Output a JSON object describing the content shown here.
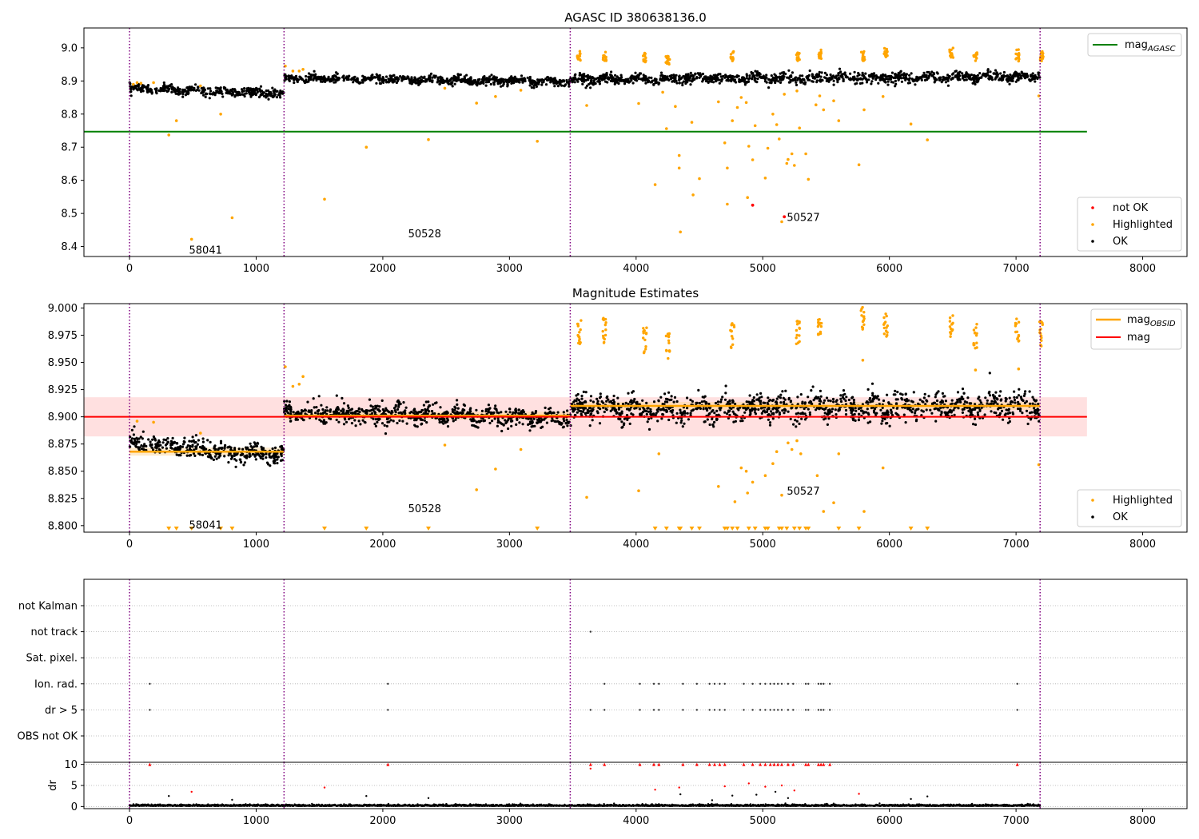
{
  "chart_data": [
    {
      "type": "scatter",
      "title": "AGASC ID 380638136.0",
      "xlim": [
        -360,
        8350
      ],
      "ylim": [
        8.37,
        9.06
      ],
      "xticks": [
        0,
        1000,
        2000,
        3000,
        4000,
        5000,
        6000,
        7000,
        8000
      ],
      "yticks": [
        8.4,
        8.5,
        8.6,
        8.7,
        8.8,
        8.9,
        9.0
      ],
      "ytick_labels": [
        "8.4",
        "8.5",
        "8.6",
        "8.7",
        "8.8",
        "8.9",
        "9.0"
      ],
      "obs_boundaries": [
        0,
        1220,
        3480,
        7190
      ],
      "obs_labels": [
        {
          "text": "58041",
          "x": 470,
          "y": 8.39
        },
        {
          "text": "50528",
          "x": 2200,
          "y": 8.44
        },
        {
          "text": "50527",
          "x": 5190,
          "y": 8.49
        }
      ],
      "reference_line": {
        "name": "mag$_{AGASC}$",
        "label_main": "mag",
        "label_sub": "AGASC",
        "y": 8.747,
        "x": [
          -360,
          7560
        ],
        "color": "#008000"
      },
      "segments": [
        {
          "x": [
            0,
            1220
          ],
          "y_start": 8.877,
          "y_end": 8.862,
          "spread": 0.012
        },
        {
          "x": [
            1220,
            3480
          ],
          "y_start": 8.908,
          "y_end": 8.898,
          "spread": 0.011
        },
        {
          "x": [
            3480,
            7190
          ],
          "y_start": 8.905,
          "y_end": 8.912,
          "spread": 0.014
        }
      ],
      "highlighted_points": [
        {
          "x": 30,
          "y": 8.89
        },
        {
          "x": 60,
          "y": 8.895
        },
        {
          "x": 90,
          "y": 8.893
        },
        {
          "x": 190,
          "y": 8.895
        },
        {
          "x": 310,
          "y": 8.737
        },
        {
          "x": 370,
          "y": 8.78
        },
        {
          "x": 490,
          "y": 8.422
        },
        {
          "x": 560,
          "y": 8.885
        },
        {
          "x": 720,
          "y": 8.8
        },
        {
          "x": 810,
          "y": 8.487
        },
        {
          "x": 1230,
          "y": 8.945
        },
        {
          "x": 1290,
          "y": 8.93
        },
        {
          "x": 1340,
          "y": 8.93
        },
        {
          "x": 1370,
          "y": 8.935
        },
        {
          "x": 1540,
          "y": 8.543
        },
        {
          "x": 1870,
          "y": 8.7
        },
        {
          "x": 2360,
          "y": 8.723
        },
        {
          "x": 2490,
          "y": 8.878
        },
        {
          "x": 2740,
          "y": 8.833
        },
        {
          "x": 2890,
          "y": 8.853
        },
        {
          "x": 3090,
          "y": 8.872
        },
        {
          "x": 3220,
          "y": 8.718
        },
        {
          "x": 3610,
          "y": 8.826
        },
        {
          "x": 4020,
          "y": 8.832
        },
        {
          "x": 4150,
          "y": 8.587
        },
        {
          "x": 4210,
          "y": 8.866
        },
        {
          "x": 4240,
          "y": 8.756
        },
        {
          "x": 4310,
          "y": 8.823
        },
        {
          "x": 4340,
          "y": 8.675
        },
        {
          "x": 4340,
          "y": 8.637
        },
        {
          "x": 4350,
          "y": 8.444
        },
        {
          "x": 4440,
          "y": 8.775
        },
        {
          "x": 4450,
          "y": 8.556
        },
        {
          "x": 4500,
          "y": 8.605
        },
        {
          "x": 4650,
          "y": 8.837
        },
        {
          "x": 4700,
          "y": 8.713
        },
        {
          "x": 4720,
          "y": 8.637
        },
        {
          "x": 4720,
          "y": 8.528
        },
        {
          "x": 4760,
          "y": 8.78
        },
        {
          "x": 4800,
          "y": 8.82
        },
        {
          "x": 4830,
          "y": 8.85
        },
        {
          "x": 4870,
          "y": 8.835
        },
        {
          "x": 4890,
          "y": 8.703
        },
        {
          "x": 4920,
          "y": 8.662
        },
        {
          "x": 4940,
          "y": 8.765
        },
        {
          "x": 4880,
          "y": 8.548
        },
        {
          "x": 5020,
          "y": 8.607
        },
        {
          "x": 5040,
          "y": 8.697
        },
        {
          "x": 5080,
          "y": 8.8
        },
        {
          "x": 5110,
          "y": 8.768
        },
        {
          "x": 5130,
          "y": 8.725
        },
        {
          "x": 5150,
          "y": 8.475
        },
        {
          "x": 5170,
          "y": 8.86
        },
        {
          "x": 5190,
          "y": 8.651
        },
        {
          "x": 5200,
          "y": 8.663
        },
        {
          "x": 5230,
          "y": 8.68
        },
        {
          "x": 5250,
          "y": 8.645
        },
        {
          "x": 5270,
          "y": 8.87
        },
        {
          "x": 5290,
          "y": 8.758
        },
        {
          "x": 5340,
          "y": 8.68
        },
        {
          "x": 5360,
          "y": 8.603
        },
        {
          "x": 5420,
          "y": 8.828
        },
        {
          "x": 5450,
          "y": 8.855
        },
        {
          "x": 5480,
          "y": 8.813
        },
        {
          "x": 5560,
          "y": 8.84
        },
        {
          "x": 5600,
          "y": 8.78
        },
        {
          "x": 5760,
          "y": 8.647
        },
        {
          "x": 5800,
          "y": 8.813
        },
        {
          "x": 5950,
          "y": 8.853
        },
        {
          "x": 6170,
          "y": 8.77
        },
        {
          "x": 6300,
          "y": 8.722
        },
        {
          "x": 7020,
          "y": 8.96
        },
        {
          "x": 7180,
          "y": 8.855
        }
      ],
      "highlighted_clusters": [
        {
          "x": 3550,
          "y": 8.975
        },
        {
          "x": 3750,
          "y": 8.975
        },
        {
          "x": 4070,
          "y": 8.97
        },
        {
          "x": 4250,
          "y": 8.965
        },
        {
          "x": 4760,
          "y": 8.975
        },
        {
          "x": 5280,
          "y": 8.975
        },
        {
          "x": 5450,
          "y": 8.98
        },
        {
          "x": 5790,
          "y": 8.975
        },
        {
          "x": 5970,
          "y": 8.985
        },
        {
          "x": 6490,
          "y": 8.985
        },
        {
          "x": 6680,
          "y": 8.975
        },
        {
          "x": 7010,
          "y": 8.98
        },
        {
          "x": 7200,
          "y": 8.975
        }
      ],
      "not_ok_points": [
        {
          "x": 4920,
          "y": 8.525
        },
        {
          "x": 5170,
          "y": 8.49
        }
      ],
      "legend": {
        "placement": "upper-right / lower-right",
        "entries": [
          "not OK",
          "Highlighted",
          "OK"
        ]
      }
    },
    {
      "type": "scatter",
      "title": "Magnitude Estimates",
      "xlim": [
        -360,
        8350
      ],
      "ylim": [
        8.794,
        9.004
      ],
      "xticks": [
        0,
        1000,
        2000,
        3000,
        4000,
        5000,
        6000,
        7000,
        8000
      ],
      "yticks": [
        8.8,
        8.825,
        8.85,
        8.875,
        8.9,
        8.925,
        8.95,
        8.975,
        9.0
      ],
      "ytick_labels": [
        "8.800",
        "8.825",
        "8.850",
        "8.875",
        "8.900",
        "8.925",
        "8.950",
        "8.975",
        "9.000"
      ],
      "obs_boundaries": [
        0,
        1220,
        3480,
        7190
      ],
      "obs_labels": [
        {
          "text": "58041",
          "x": 470,
          "y": 8.801
        },
        {
          "text": "50528",
          "x": 2200,
          "y": 8.816
        },
        {
          "text": "50527",
          "x": 5190,
          "y": 8.832
        }
      ],
      "mag": {
        "name": "mag",
        "y": 8.9,
        "band": [
          8.882,
          8.918
        ],
        "x": [
          -360,
          7560
        ],
        "color": "#ff0000"
      },
      "mag_obsid": {
        "label_main": "mag",
        "label_sub": "OBSID",
        "color": "#ffa500",
        "segments": [
          {
            "x": [
              0,
              1220
            ],
            "y": 8.868
          },
          {
            "x": [
              1220,
              3480
            ],
            "y": 8.901
          },
          {
            "x": [
              3480,
              7190
            ],
            "y": 8.91
          }
        ]
      },
      "segments": [
        {
          "x": [
            0,
            1220
          ],
          "y_start": 8.876,
          "y_end": 8.864,
          "spread": 0.008
        },
        {
          "x": [
            1220,
            3480
          ],
          "y_start": 8.904,
          "y_end": 8.899,
          "spread": 0.008
        },
        {
          "x": [
            3480,
            7190
          ],
          "y_start": 8.906,
          "y_end": 8.911,
          "spread": 0.011
        }
      ],
      "highlighted_points": [
        {
          "x": 1230,
          "y": 8.946
        },
        {
          "x": 1290,
          "y": 8.928
        },
        {
          "x": 1340,
          "y": 8.93
        },
        {
          "x": 1370,
          "y": 8.937
        },
        {
          "x": 60,
          "y": 8.896
        },
        {
          "x": 190,
          "y": 8.895
        },
        {
          "x": 560,
          "y": 8.885
        },
        {
          "x": 2490,
          "y": 8.874
        },
        {
          "x": 2740,
          "y": 8.833
        },
        {
          "x": 2890,
          "y": 8.852
        },
        {
          "x": 3090,
          "y": 8.87
        },
        {
          "x": 3610,
          "y": 8.826
        },
        {
          "x": 4020,
          "y": 8.832
        },
        {
          "x": 4180,
          "y": 8.866
        },
        {
          "x": 4650,
          "y": 8.836
        },
        {
          "x": 4780,
          "y": 8.822
        },
        {
          "x": 4830,
          "y": 8.853
        },
        {
          "x": 4870,
          "y": 8.85
        },
        {
          "x": 4920,
          "y": 8.84
        },
        {
          "x": 4880,
          "y": 8.83
        },
        {
          "x": 5020,
          "y": 8.846
        },
        {
          "x": 5080,
          "y": 8.857
        },
        {
          "x": 5110,
          "y": 8.868
        },
        {
          "x": 5150,
          "y": 8.828
        },
        {
          "x": 5200,
          "y": 8.876
        },
        {
          "x": 5230,
          "y": 8.87
        },
        {
          "x": 5270,
          "y": 8.878
        },
        {
          "x": 5300,
          "y": 8.866
        },
        {
          "x": 5430,
          "y": 8.846
        },
        {
          "x": 5480,
          "y": 8.813
        },
        {
          "x": 5560,
          "y": 8.821
        },
        {
          "x": 5600,
          "y": 8.866
        },
        {
          "x": 5800,
          "y": 8.813
        },
        {
          "x": 5950,
          "y": 8.853
        },
        {
          "x": 6680,
          "y": 8.943
        },
        {
          "x": 7020,
          "y": 8.944
        },
        {
          "x": 7180,
          "y": 8.856
        },
        {
          "x": 5790,
          "y": 8.952
        }
      ],
      "highlighted_clusters": [
        {
          "x": 3550,
          "y": 8.978
        },
        {
          "x": 3750,
          "y": 8.98
        },
        {
          "x": 4070,
          "y": 8.97
        },
        {
          "x": 4250,
          "y": 8.965
        },
        {
          "x": 4760,
          "y": 8.975
        },
        {
          "x": 5280,
          "y": 8.976
        },
        {
          "x": 5450,
          "y": 8.978
        },
        {
          "x": 5790,
          "y": 8.99
        },
        {
          "x": 5970,
          "y": 8.983
        },
        {
          "x": 6490,
          "y": 8.985
        },
        {
          "x": 6680,
          "y": 8.975
        },
        {
          "x": 7010,
          "y": 8.978
        },
        {
          "x": 7200,
          "y": 8.976
        }
      ],
      "below_range_markers_x": [
        310,
        370,
        490,
        720,
        810,
        1540,
        1870,
        2360,
        3220,
        4150,
        4240,
        4340,
        4350,
        4440,
        4500,
        4700,
        4720,
        4760,
        4800,
        4890,
        4940,
        5020,
        5040,
        5130,
        5150,
        5190,
        5250,
        5290,
        5340,
        5360,
        5600,
        5760,
        6170,
        6300
      ],
      "legend": {
        "upper_right_entries": [
          "mag$_{OBSID}$",
          "mag"
        ],
        "lower_right_entries": [
          "Highlighted",
          "OK"
        ]
      }
    },
    {
      "type": "scatter",
      "title": "",
      "xlim": [
        -360,
        8350
      ],
      "obs_boundaries": [
        0,
        1220,
        3480,
        7190
      ],
      "flag_rows": [
        "not Kalman",
        "not track",
        "Sat. pixel.",
        "Ion. rad.",
        "dr > 5",
        "OBS not OK"
      ],
      "flags": {
        "not track": [
          3640
        ],
        "Ion. rad.": [
          160,
          2040,
          3750,
          4030,
          4140,
          4180,
          4370,
          4480,
          4580,
          4620,
          4660,
          4700,
          4850,
          4920,
          4980,
          5020,
          5060,
          5090,
          5120,
          5150,
          5200,
          5240,
          5340,
          5360,
          5440,
          5460,
          5480,
          5530,
          7010
        ],
        "dr > 5": [
          160,
          2040,
          3640,
          3750,
          4030,
          4140,
          4180,
          4370,
          4480,
          4580,
          4620,
          4660,
          4700,
          4850,
          4920,
          4980,
          5020,
          5060,
          5090,
          5120,
          5150,
          5200,
          5240,
          5340,
          5360,
          5440,
          5460,
          5480,
          5530,
          7010
        ]
      },
      "dr_panel": {
        "ylabel": "dr",
        "ylim": [
          -0.5,
          10.5
        ],
        "yticks": [
          0,
          5,
          10
        ],
        "ytick_labels": [
          "0",
          "5",
          "10"
        ],
        "clipped_x": [
          160,
          2040,
          3640,
          3750,
          4030,
          4140,
          4180,
          4370,
          4480,
          4580,
          4620,
          4660,
          4700,
          4850,
          4920,
          4980,
          5020,
          5060,
          5090,
          5120,
          5150,
          5200,
          5240,
          5340,
          5360,
          5440,
          5460,
          5480,
          5530,
          7010
        ],
        "red_points": [
          {
            "x": 490,
            "y": 3.5
          },
          {
            "x": 1540,
            "y": 4.5
          },
          {
            "x": 4150,
            "y": 4.0
          },
          {
            "x": 4340,
            "y": 4.5
          },
          {
            "x": 4700,
            "y": 4.8
          },
          {
            "x": 4890,
            "y": 5.5
          },
          {
            "x": 5020,
            "y": 4.7
          },
          {
            "x": 5150,
            "y": 5.0
          },
          {
            "x": 5250,
            "y": 3.8
          },
          {
            "x": 5760,
            "y": 3.0
          },
          {
            "x": 3640,
            "y": 9.0
          }
        ],
        "black_points": [
          {
            "x": 310,
            "y": 2.5
          },
          {
            "x": 810,
            "y": 1.6
          },
          {
            "x": 1870,
            "y": 2.5
          },
          {
            "x": 2360,
            "y": 2.0
          },
          {
            "x": 4350,
            "y": 2.9
          },
          {
            "x": 4600,
            "y": 1.5
          },
          {
            "x": 4760,
            "y": 2.6
          },
          {
            "x": 4950,
            "y": 2.8
          },
          {
            "x": 5100,
            "y": 3.5
          },
          {
            "x": 5200,
            "y": 2.0
          },
          {
            "x": 6170,
            "y": 1.8
          },
          {
            "x": 6300,
            "y": 2.4
          }
        ]
      }
    }
  ],
  "colors": {
    "ok": "#000000",
    "highlighted": "#ffa500",
    "not_ok": "#ff0000",
    "agasc": "#008000",
    "mag": "#ff0000",
    "obsid": "#ffa500",
    "boundary": "#800080",
    "band": "#ffcccc"
  }
}
